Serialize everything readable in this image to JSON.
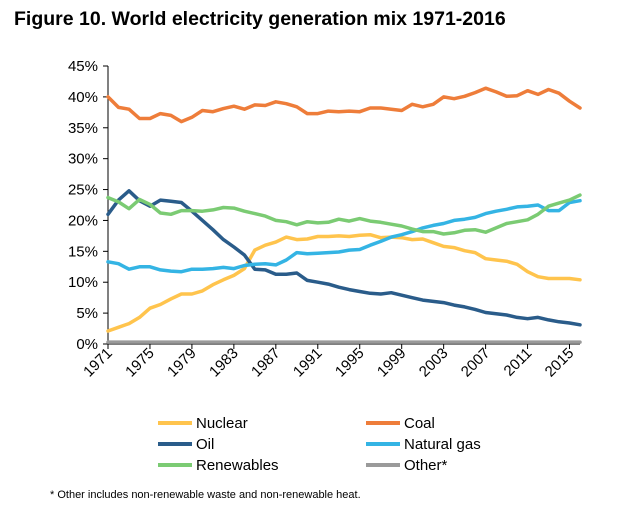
{
  "title": "Figure 10. World electricity generation mix 1971-2016",
  "footnote": "* Other includes non-renewable waste and non-renewable heat.",
  "chart_data": {
    "type": "line",
    "title": "Figure 10. World electricity generation mix 1971-2016",
    "xlabel": "",
    "ylabel": "",
    "xlim": [
      1971,
      2016
    ],
    "ylim": [
      0,
      45
    ],
    "y_ticks": [
      "0%",
      "5%",
      "10%",
      "15%",
      "20%",
      "25%",
      "30%",
      "35%",
      "40%",
      "45%"
    ],
    "x_ticks": [
      "1971",
      "1975",
      "1979",
      "1983",
      "1987",
      "1991",
      "1995",
      "1999",
      "2003",
      "2007",
      "2011",
      "2015"
    ],
    "grid": false,
    "legend_placement": "bottom",
    "x": [
      1971,
      1972,
      1973,
      1974,
      1975,
      1976,
      1977,
      1978,
      1979,
      1980,
      1981,
      1982,
      1983,
      1984,
      1985,
      1986,
      1987,
      1988,
      1989,
      1990,
      1991,
      1992,
      1993,
      1994,
      1995,
      1996,
      1997,
      1998,
      1999,
      2000,
      2001,
      2002,
      2003,
      2004,
      2005,
      2006,
      2007,
      2008,
      2009,
      2010,
      2011,
      2012,
      2013,
      2014,
      2015,
      2016
    ],
    "series": [
      {
        "name": "Nuclear",
        "color": "#FFC44D",
        "values": [
          2.1,
          2.7,
          3.3,
          4.3,
          5.8,
          6.4,
          7.3,
          8.1,
          8.1,
          8.6,
          9.6,
          10.4,
          11.1,
          12.2,
          15.2,
          16.0,
          16.5,
          17.3,
          16.9,
          17.0,
          17.4,
          17.4,
          17.5,
          17.4,
          17.6,
          17.7,
          17.2,
          17.3,
          17.2,
          16.9,
          17.0,
          16.4,
          15.8,
          15.6,
          15.1,
          14.8,
          13.8,
          13.6,
          13.4,
          12.9,
          11.7,
          10.9,
          10.6,
          10.6,
          10.6,
          10.4
        ]
      },
      {
        "name": "Coal",
        "color": "#EE7D3A",
        "values": [
          40.0,
          38.3,
          38.0,
          36.5,
          36.5,
          37.3,
          37.0,
          36.0,
          36.7,
          37.8,
          37.6,
          38.1,
          38.5,
          38.0,
          38.7,
          38.6,
          39.2,
          38.9,
          38.4,
          37.3,
          37.3,
          37.7,
          37.6,
          37.7,
          37.6,
          38.2,
          38.2,
          38.0,
          37.8,
          38.8,
          38.4,
          38.8,
          40.0,
          39.7,
          40.1,
          40.7,
          41.4,
          40.8,
          40.1,
          40.2,
          41.0,
          40.4,
          41.2,
          40.6,
          39.3,
          38.2
        ]
      },
      {
        "name": "Oil",
        "color": "#2A5C8A",
        "values": [
          21.0,
          23.3,
          24.8,
          23.2,
          22.3,
          23.3,
          23.1,
          22.9,
          21.5,
          20.0,
          18.5,
          16.9,
          15.7,
          14.4,
          12.1,
          12.0,
          11.3,
          11.3,
          11.5,
          10.3,
          10.0,
          9.7,
          9.2,
          8.8,
          8.5,
          8.2,
          8.1,
          8.3,
          7.9,
          7.5,
          7.1,
          6.9,
          6.7,
          6.3,
          6.0,
          5.6,
          5.1,
          4.9,
          4.7,
          4.3,
          4.1,
          4.3,
          3.9,
          3.6,
          3.4,
          3.1
        ]
      },
      {
        "name": "Natural gas",
        "color": "#34B4E4",
        "values": [
          13.3,
          13.0,
          12.1,
          12.5,
          12.5,
          12.0,
          11.8,
          11.7,
          12.1,
          12.1,
          12.2,
          12.4,
          12.2,
          12.7,
          12.9,
          13.0,
          12.8,
          13.6,
          14.8,
          14.6,
          14.7,
          14.8,
          14.9,
          15.2,
          15.3,
          16.0,
          16.6,
          17.3,
          17.7,
          18.2,
          18.8,
          19.2,
          19.5,
          20.0,
          20.2,
          20.5,
          21.1,
          21.5,
          21.8,
          22.2,
          22.3,
          22.5,
          21.6,
          21.6,
          22.9,
          23.2
        ]
      },
      {
        "name": "Renewables",
        "color": "#7BCB73",
        "values": [
          23.7,
          23.0,
          21.9,
          23.4,
          22.6,
          21.2,
          21.0,
          21.6,
          21.6,
          21.5,
          21.7,
          22.1,
          22.0,
          21.5,
          21.1,
          20.7,
          20.0,
          19.8,
          19.3,
          19.8,
          19.6,
          19.7,
          20.2,
          19.9,
          20.3,
          19.9,
          19.7,
          19.4,
          19.1,
          18.6,
          18.2,
          18.2,
          17.8,
          18.0,
          18.4,
          18.5,
          18.1,
          18.8,
          19.5,
          19.8,
          20.1,
          21.0,
          22.3,
          22.8,
          23.3,
          24.1
        ]
      },
      {
        "name": "Other*",
        "color": "#9A9A9A",
        "values": [
          0.3,
          0.3,
          0.3,
          0.3,
          0.3,
          0.3,
          0.3,
          0.3,
          0.3,
          0.3,
          0.3,
          0.3,
          0.3,
          0.3,
          0.3,
          0.3,
          0.3,
          0.3,
          0.3,
          0.3,
          0.3,
          0.3,
          0.3,
          0.3,
          0.3,
          0.3,
          0.3,
          0.3,
          0.3,
          0.3,
          0.3,
          0.3,
          0.3,
          0.3,
          0.3,
          0.3,
          0.3,
          0.3,
          0.3,
          0.3,
          0.3,
          0.3,
          0.3,
          0.3,
          0.3,
          0.3
        ]
      }
    ],
    "legend": [
      {
        "name": "Nuclear",
        "color": "#FFC44D"
      },
      {
        "name": "Coal",
        "color": "#EE7D3A"
      },
      {
        "name": "Oil",
        "color": "#2A5C8A"
      },
      {
        "name": "Natural gas",
        "color": "#34B4E4"
      },
      {
        "name": "Renewables",
        "color": "#7BCB73"
      },
      {
        "name": "Other*",
        "color": "#9A9A9A"
      }
    ]
  }
}
